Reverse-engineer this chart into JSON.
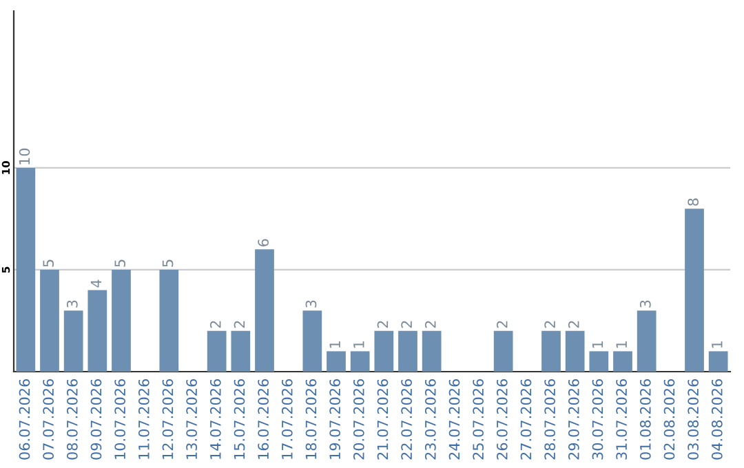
{
  "chart_data": {
    "type": "bar",
    "categories": [
      "06.07.2026",
      "07.07.2026",
      "08.07.2026",
      "09.07.2026",
      "10.07.2026",
      "11.07.2026",
      "12.07.2026",
      "13.07.2026",
      "14.07.2026",
      "15.07.2026",
      "16.07.2026",
      "17.07.2026",
      "18.07.2026",
      "19.07.2026",
      "20.07.2026",
      "21.07.2026",
      "22.07.2026",
      "23.07.2026",
      "24.07.2026",
      "25.07.2026",
      "26.07.2026",
      "27.07.2026",
      "28.07.2026",
      "29.07.2026",
      "30.07.2026",
      "31.07.2026",
      "01.08.2026",
      "02.08.2026",
      "03.08.2026",
      "04.08.2026"
    ],
    "values": [
      10,
      5,
      3,
      4,
      5,
      0,
      5,
      0,
      2,
      2,
      6,
      0,
      3,
      1,
      1,
      2,
      2,
      2,
      0,
      0,
      2,
      0,
      2,
      2,
      1,
      1,
      3,
      0,
      8,
      1
    ],
    "value_labels": [
      "10",
      "5",
      "3",
      "4",
      "5",
      null,
      "5",
      null,
      "2",
      "2",
      "6",
      null,
      "3",
      "1",
      "1",
      "2",
      "2",
      "2",
      null,
      null,
      "2",
      null,
      "2",
      "2",
      "1",
      "1",
      "3",
      null,
      "8",
      "1"
    ],
    "color": "#6d8fb1",
    "ylim": [
      0,
      17.7
    ],
    "yticks": [
      5,
      10
    ],
    "grid": "y"
  }
}
